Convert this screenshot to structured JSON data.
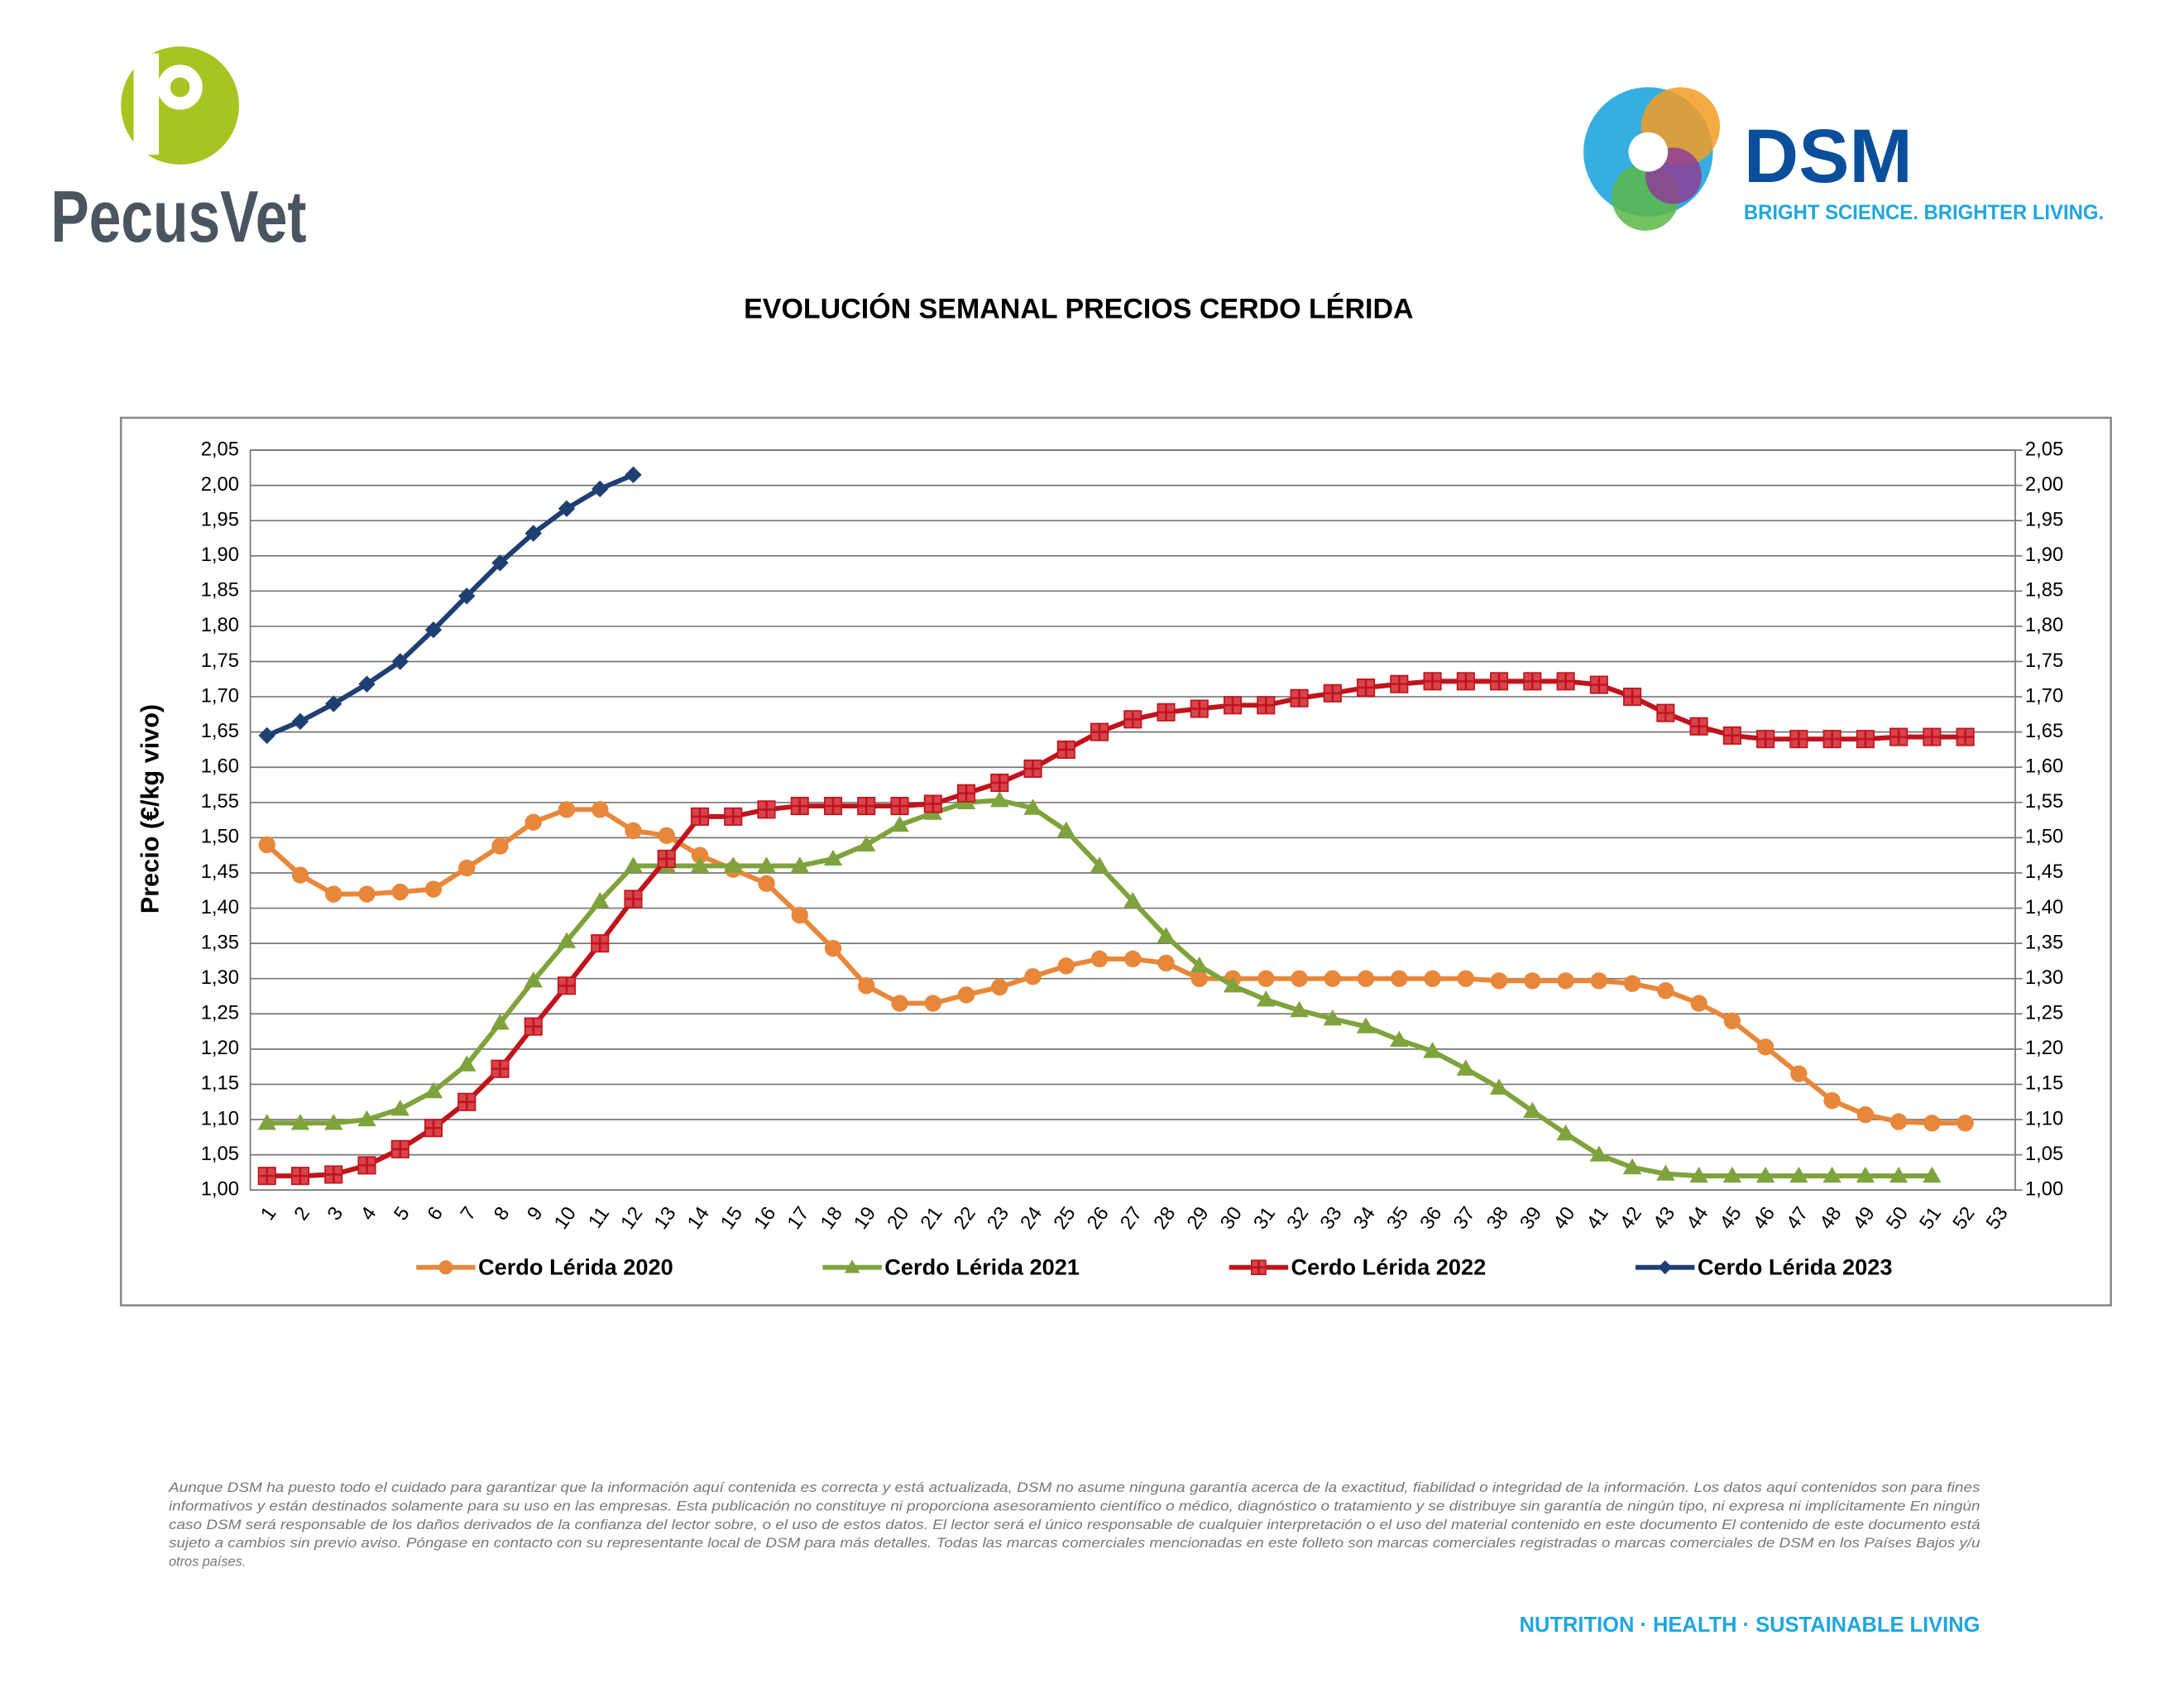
{
  "header": {
    "left_logo": "PecusVet",
    "right_logo": "DSM",
    "right_tagline": "BRIGHT SCIENCE. BRIGHTER LIVING."
  },
  "chart_data": {
    "type": "line",
    "title": "EVOLUCIÓN SEMANAL PRECIOS CERDO LÉRIDA",
    "y_label": "Precio (€/kg vivo)",
    "categories": [
      "1",
      "2",
      "3",
      "4",
      "5",
      "6",
      "7",
      "8",
      "9",
      "10",
      "11",
      "12",
      "13",
      "14",
      "15",
      "16",
      "17",
      "18",
      "19",
      "20",
      "21",
      "22",
      "23",
      "24",
      "25",
      "26",
      "27",
      "28",
      "29",
      "30",
      "31",
      "32",
      "33",
      "34",
      "35",
      "36",
      "37",
      "38",
      "39",
      "40",
      "41",
      "42",
      "43",
      "44",
      "45",
      "46",
      "47",
      "48",
      "49",
      "50",
      "51",
      "52",
      "53"
    ],
    "series": [
      {
        "name": "Cerdo Lérida 2020",
        "color": "#e8873a",
        "marker": "circle",
        "values": [
          1.49,
          1.447,
          1.42,
          1.42,
          1.423,
          1.427,
          1.457,
          1.488,
          1.522,
          1.54,
          1.54,
          1.51,
          1.503,
          1.475,
          1.455,
          1.435,
          1.39,
          1.343,
          1.29,
          1.265,
          1.265,
          1.277,
          1.288,
          1.303,
          1.318,
          1.328,
          1.328,
          1.322,
          1.3,
          1.3,
          1.3,
          1.3,
          1.3,
          1.3,
          1.3,
          1.3,
          1.3,
          1.297,
          1.297,
          1.297,
          1.297,
          1.293,
          1.283,
          1.265,
          1.24,
          1.203,
          1.165,
          1.127,
          1.107,
          1.097,
          1.095,
          1.095,
          null
        ]
      },
      {
        "name": "Cerdo Lérida 2021",
        "color": "#7fa33c",
        "marker": "triangle",
        "values": [
          1.095,
          1.095,
          1.095,
          1.1,
          1.115,
          1.14,
          1.178,
          1.237,
          1.297,
          1.353,
          1.41,
          1.46,
          1.46,
          1.46,
          1.46,
          1.46,
          1.46,
          1.47,
          1.49,
          1.518,
          1.535,
          1.55,
          1.553,
          1.542,
          1.51,
          1.46,
          1.41,
          1.36,
          1.318,
          1.29,
          1.27,
          1.255,
          1.243,
          1.232,
          1.213,
          1.197,
          1.172,
          1.145,
          1.112,
          1.08,
          1.05,
          1.032,
          1.023,
          1.02,
          1.02,
          1.02,
          1.02,
          1.02,
          1.02,
          1.02,
          1.02,
          null,
          null
        ]
      },
      {
        "name": "Cerdo Lérida 2022",
        "color": "#c0141c",
        "marker": "square-cross",
        "values": [
          1.02,
          1.02,
          1.022,
          1.035,
          1.058,
          1.088,
          1.125,
          1.172,
          1.232,
          1.29,
          1.35,
          1.413,
          1.47,
          1.53,
          1.53,
          1.54,
          1.545,
          1.545,
          1.545,
          1.545,
          1.548,
          1.563,
          1.578,
          1.598,
          1.625,
          1.65,
          1.668,
          1.678,
          1.683,
          1.688,
          1.688,
          1.698,
          1.705,
          1.713,
          1.718,
          1.722,
          1.722,
          1.722,
          1.722,
          1.722,
          1.717,
          1.7,
          1.677,
          1.658,
          1.645,
          1.64,
          1.64,
          1.64,
          1.64,
          1.643,
          1.643,
          1.643,
          null
        ]
      },
      {
        "name": "Cerdo Lérida 2023",
        "color": "#1f3f73",
        "marker": "diamond",
        "values": [
          1.645,
          1.665,
          1.69,
          1.718,
          1.75,
          1.795,
          1.843,
          1.89,
          1.932,
          1.967,
          1.995,
          2.015,
          null,
          null,
          null,
          null,
          null,
          null,
          null,
          null,
          null,
          null,
          null,
          null,
          null,
          null,
          null,
          null,
          null,
          null,
          null,
          null,
          null,
          null,
          null,
          null,
          null,
          null,
          null,
          null,
          null,
          null,
          null,
          null,
          null,
          null,
          null,
          null,
          null,
          null,
          null,
          null,
          null
        ]
      }
    ],
    "ylim": [
      1.0,
      2.05
    ],
    "yticks": [
      {
        "value": 1.0,
        "label": "1,00"
      },
      {
        "value": 1.05,
        "label": "1,05"
      },
      {
        "value": 1.1,
        "label": "1,10"
      },
      {
        "value": 1.15,
        "label": "1,15"
      },
      {
        "value": 1.2,
        "label": "1,20"
      },
      {
        "value": 1.25,
        "label": "1,25"
      },
      {
        "value": 1.3,
        "label": "1,30"
      },
      {
        "value": 1.35,
        "label": "1,35"
      },
      {
        "value": 1.4,
        "label": "1,40"
      },
      {
        "value": 1.45,
        "label": "1,45"
      },
      {
        "value": 1.5,
        "label": "1,50"
      },
      {
        "value": 1.55,
        "label": "1,55"
      },
      {
        "value": 1.6,
        "label": "1,60"
      },
      {
        "value": 1.65,
        "label": "1,65"
      },
      {
        "value": 1.7,
        "label": "1,70"
      },
      {
        "value": 1.75,
        "label": "1,75"
      },
      {
        "value": 1.8,
        "label": "1,80"
      },
      {
        "value": 1.85,
        "label": "1,85"
      },
      {
        "value": 1.9,
        "label": "1,90"
      },
      {
        "value": 1.95,
        "label": "1,95"
      },
      {
        "value": 2.0,
        "label": "2,00"
      },
      {
        "value": 2.05,
        "label": "2,05"
      }
    ],
    "y2lim": [
      1.0,
      2.05
    ],
    "y2ticks": [
      {
        "value": 1.0,
        "label": "1,00"
      },
      {
        "value": 1.05,
        "label": "1,05"
      },
      {
        "value": 1.1,
        "label": "1,10"
      },
      {
        "value": 1.15,
        "label": "1,15"
      },
      {
        "value": 1.2,
        "label": "1,20"
      },
      {
        "value": 1.25,
        "label": "1,25"
      },
      {
        "value": 1.3,
        "label": "1,30"
      },
      {
        "value": 1.35,
        "label": "1,35"
      },
      {
        "value": 1.4,
        "label": "1,40"
      },
      {
        "value": 1.45,
        "label": "1,45"
      },
      {
        "value": 1.5,
        "label": "1,50"
      },
      {
        "value": 1.55,
        "label": "1,55"
      },
      {
        "value": 1.6,
        "label": "1,60"
      },
      {
        "value": 1.65,
        "label": "1,65"
      },
      {
        "value": 1.7,
        "label": "1,70"
      },
      {
        "value": 1.75,
        "label": "1,75"
      },
      {
        "value": 1.8,
        "label": "1,80"
      },
      {
        "value": 1.85,
        "label": "1,85"
      },
      {
        "value": 1.9,
        "label": "1,90"
      },
      {
        "value": 1.95,
        "label": "1,95"
      },
      {
        "value": 2.0,
        "label": "2,00"
      },
      {
        "value": 2.05,
        "label": "2,05"
      }
    ],
    "grid": true,
    "legend": "bottom"
  },
  "footer": {
    "disclaimer": [
      "Aunque DSM ha puesto todo el cuidado para garantizar que la información aquí contenida es correcta y está actualizada, DSM no asume ninguna garantía acerca de la exactitud, fiabilidad o integridad de la información. Los datos aquí contenidos son para fines",
      "informativos y están destinados solamente para su uso en las empresas. Esta publicación no constituye ni proporciona asesoramiento científico o médico, diagnóstico o tratamiento y se distribuye sin garantía de ningún tipo, ni expresa ni implícitamente En ningún",
      "caso DSM será responsable de los daños derivados de la confianza del lector sobre, o el uso de estos datos. El lector será el único responsable de cualquier interpretación o el uso del material contenido en este documento El contenido de este documento está",
      "sujeto a cambios sin previo aviso. Póngase en contacto con su representante local de DSM para más detalles. Todas las marcas comerciales mencionadas en este folleto son marcas comerciales registradas o marcas comerciales de DSM en los Países Bajos y/u",
      "otros países."
    ],
    "tagline": "NUTRITION · HEALTH · SUSTAINABLE LIVING"
  }
}
